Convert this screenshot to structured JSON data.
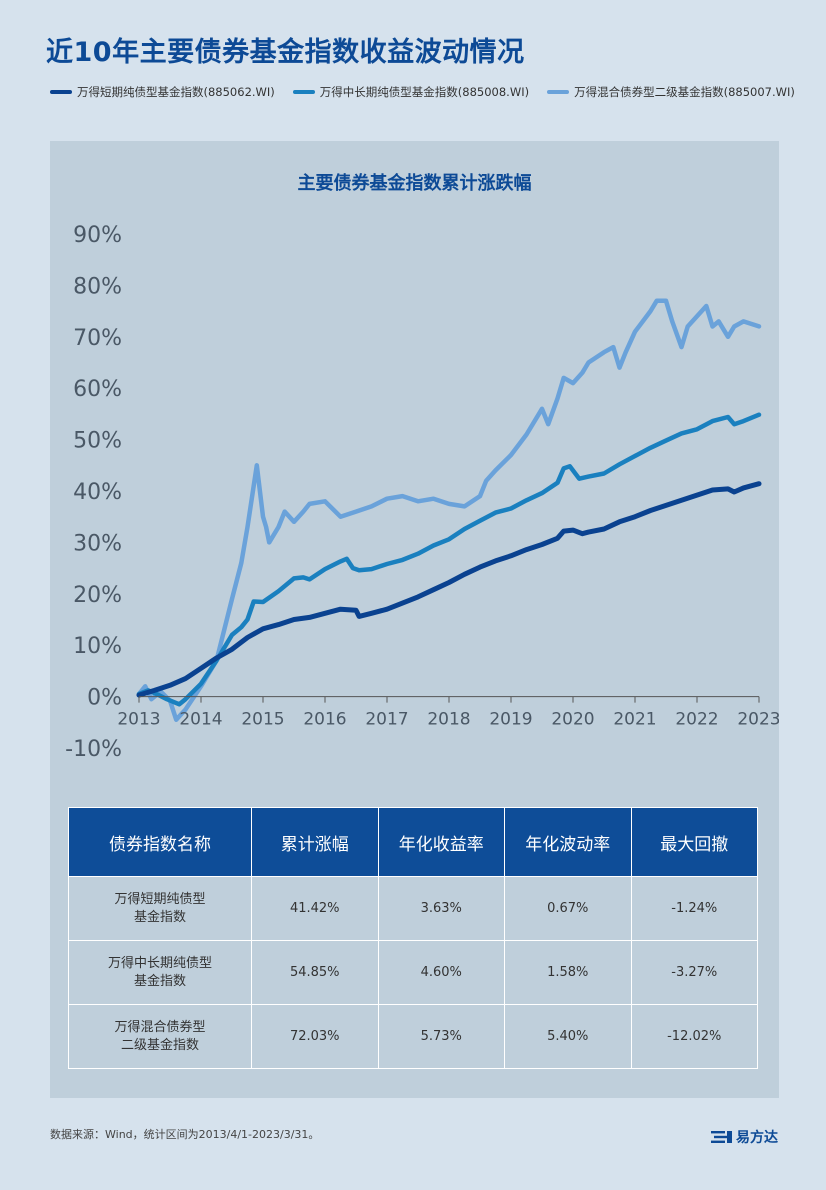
{
  "title": "近10年主要债券基金指数收益波动情况",
  "legend": [
    {
      "label": "万得短期纯债型基金指数(885062.WI)",
      "color": "#0a4290"
    },
    {
      "label": "万得中长期纯债型基金指数(885008.WI)",
      "color": "#1a80bf"
    },
    {
      "label": "万得混合债券型二级基金指数(885007.WI)",
      "color": "#6aa2da"
    }
  ],
  "chart_data": {
    "type": "line",
    "title": "主要债券基金指数累计涨跌幅",
    "x_ticks": [
      "2013",
      "2014",
      "2015",
      "2016",
      "2017",
      "2018",
      "2019",
      "2020",
      "2021",
      "2022",
      "2023"
    ],
    "y_ticks": [
      "90%",
      "80%",
      "70%",
      "60%",
      "50%",
      "40%",
      "30%",
      "20%",
      "10%",
      "0%",
      "-10%"
    ],
    "ylim": [
      -10,
      90
    ],
    "xlim": [
      2013.25,
      2023.25
    ],
    "series": [
      {
        "name": "万得短期纯债型基金指数(885062.WI)",
        "color": "#0a4290",
        "x": [
          2013.25,
          2013.5,
          2013.75,
          2014.0,
          2014.25,
          2014.5,
          2014.75,
          2015.0,
          2015.25,
          2015.5,
          2015.75,
          2016.0,
          2016.25,
          2016.5,
          2016.75,
          2016.8,
          2017.0,
          2017.25,
          2017.5,
          2017.75,
          2018.0,
          2018.25,
          2018.5,
          2018.75,
          2019.0,
          2019.25,
          2019.5,
          2019.75,
          2020.0,
          2020.1,
          2020.25,
          2020.4,
          2020.5,
          2020.75,
          2021.0,
          2021.25,
          2021.5,
          2021.75,
          2022.0,
          2022.25,
          2022.5,
          2022.75,
          2022.85,
          2023.0,
          2023.25
        ],
        "y": [
          0.3,
          1.2,
          2.2,
          3.5,
          5.5,
          7.5,
          9.2,
          11.5,
          13.2,
          14.0,
          15.0,
          15.4,
          16.2,
          17.0,
          16.8,
          15.6,
          16.2,
          17.0,
          18.2,
          19.4,
          20.8,
          22.2,
          23.8,
          25.2,
          26.4,
          27.4,
          28.6,
          29.6,
          30.8,
          32.2,
          32.4,
          31.7,
          32.0,
          32.6,
          34.0,
          35.0,
          36.2,
          37.2,
          38.2,
          39.2,
          40.2,
          40.4,
          39.8,
          40.6,
          41.42
        ]
      },
      {
        "name": "万得中长期纯债型基金指数(885008.WI)",
        "color": "#1a80bf",
        "x": [
          2013.25,
          2013.4,
          2013.55,
          2013.7,
          2013.9,
          2014.0,
          2014.25,
          2014.5,
          2014.75,
          2014.9,
          2015.0,
          2015.1,
          2015.25,
          2015.5,
          2015.75,
          2015.9,
          2016.0,
          2016.25,
          2016.5,
          2016.6,
          2016.7,
          2016.8,
          2017.0,
          2017.25,
          2017.5,
          2017.75,
          2018.0,
          2018.25,
          2018.5,
          2018.75,
          2019.0,
          2019.25,
          2019.5,
          2019.75,
          2020.0,
          2020.1,
          2020.2,
          2020.35,
          2020.5,
          2020.75,
          2021.0,
          2021.25,
          2021.5,
          2021.75,
          2022.0,
          2022.25,
          2022.5,
          2022.75,
          2022.85,
          2023.0,
          2023.25
        ],
        "y": [
          0.5,
          1.2,
          0.4,
          -0.5,
          -1.5,
          -0.5,
          2.5,
          7.0,
          12.0,
          13.5,
          15.0,
          18.5,
          18.4,
          20.5,
          23.0,
          23.2,
          22.8,
          24.8,
          26.3,
          26.8,
          25.0,
          24.6,
          24.8,
          25.8,
          26.6,
          27.8,
          29.4,
          30.6,
          32.6,
          34.2,
          35.8,
          36.6,
          38.2,
          39.6,
          41.6,
          44.4,
          44.8,
          42.4,
          42.8,
          43.4,
          45.2,
          46.8,
          48.4,
          49.8,
          51.2,
          52.0,
          53.6,
          54.4,
          53.0,
          53.6,
          54.85
        ]
      },
      {
        "name": "万得混合债券型二级基金指数(885007.WI)",
        "color": "#6aa2da",
        "x": [
          2013.25,
          2013.35,
          2013.45,
          2013.6,
          2013.75,
          2013.85,
          2014.0,
          2014.25,
          2014.5,
          2014.75,
          2014.9,
          2015.0,
          2015.15,
          2015.25,
          2015.3,
          2015.35,
          2015.5,
          2015.6,
          2015.75,
          2015.9,
          2016.0,
          2016.25,
          2016.5,
          2016.75,
          2017.0,
          2017.25,
          2017.5,
          2017.75,
          2018.0,
          2018.25,
          2018.5,
          2018.75,
          2018.85,
          2019.0,
          2019.25,
          2019.5,
          2019.75,
          2019.85,
          2020.0,
          2020.1,
          2020.25,
          2020.4,
          2020.5,
          2020.75,
          2020.9,
          2021.0,
          2021.1,
          2021.25,
          2021.5,
          2021.6,
          2021.75,
          2021.85,
          2022.0,
          2022.1,
          2022.25,
          2022.4,
          2022.5,
          2022.6,
          2022.75,
          2022.85,
          2023.0,
          2023.25
        ],
        "y": [
          0.5,
          2.0,
          -0.5,
          1.0,
          -0.8,
          -4.5,
          -2.5,
          2.0,
          7.0,
          19.0,
          26.0,
          33.0,
          45.0,
          35.0,
          33.0,
          30.0,
          33.0,
          36.0,
          34.0,
          36.0,
          37.5,
          38.0,
          35.0,
          36.0,
          37.0,
          38.5,
          39.0,
          38.0,
          38.5,
          37.5,
          37.0,
          39.0,
          42.0,
          44.0,
          47.0,
          51.0,
          56.0,
          53.0,
          58.0,
          62.0,
          61.0,
          63.0,
          65.0,
          67.0,
          68.0,
          64.0,
          67.0,
          71.0,
          75.0,
          77.0,
          77.0,
          73.0,
          68.0,
          72.0,
          74.0,
          76.0,
          72.0,
          73.0,
          70.0,
          72.0,
          73.0,
          72.03
        ]
      }
    ]
  },
  "table": {
    "headers": [
      "债券指数名称",
      "累计涨幅",
      "年化收益率",
      "年化波动率",
      "最大回撤"
    ],
    "rows": [
      {
        "name_line1": "万得短期纯债型",
        "name_line2": "基金指数",
        "cum": "41.42%",
        "ann_ret": "3.63%",
        "ann_vol": "0.67%",
        "mdd": "-1.24%"
      },
      {
        "name_line1": "万得中长期纯债型",
        "name_line2": "基金指数",
        "cum": "54.85%",
        "ann_ret": "4.60%",
        "ann_vol": "1.58%",
        "mdd": "-3.27%"
      },
      {
        "name_line1": "万得混合债券型",
        "name_line2": "二级基金指数",
        "cum": "72.03%",
        "ann_ret": "5.73%",
        "ann_vol": "5.40%",
        "mdd": "-12.02%"
      }
    ]
  },
  "footer": {
    "note": "数据来源：Wind，统计区间为2013/4/1-2023/3/31。",
    "brand": "易方达"
  }
}
